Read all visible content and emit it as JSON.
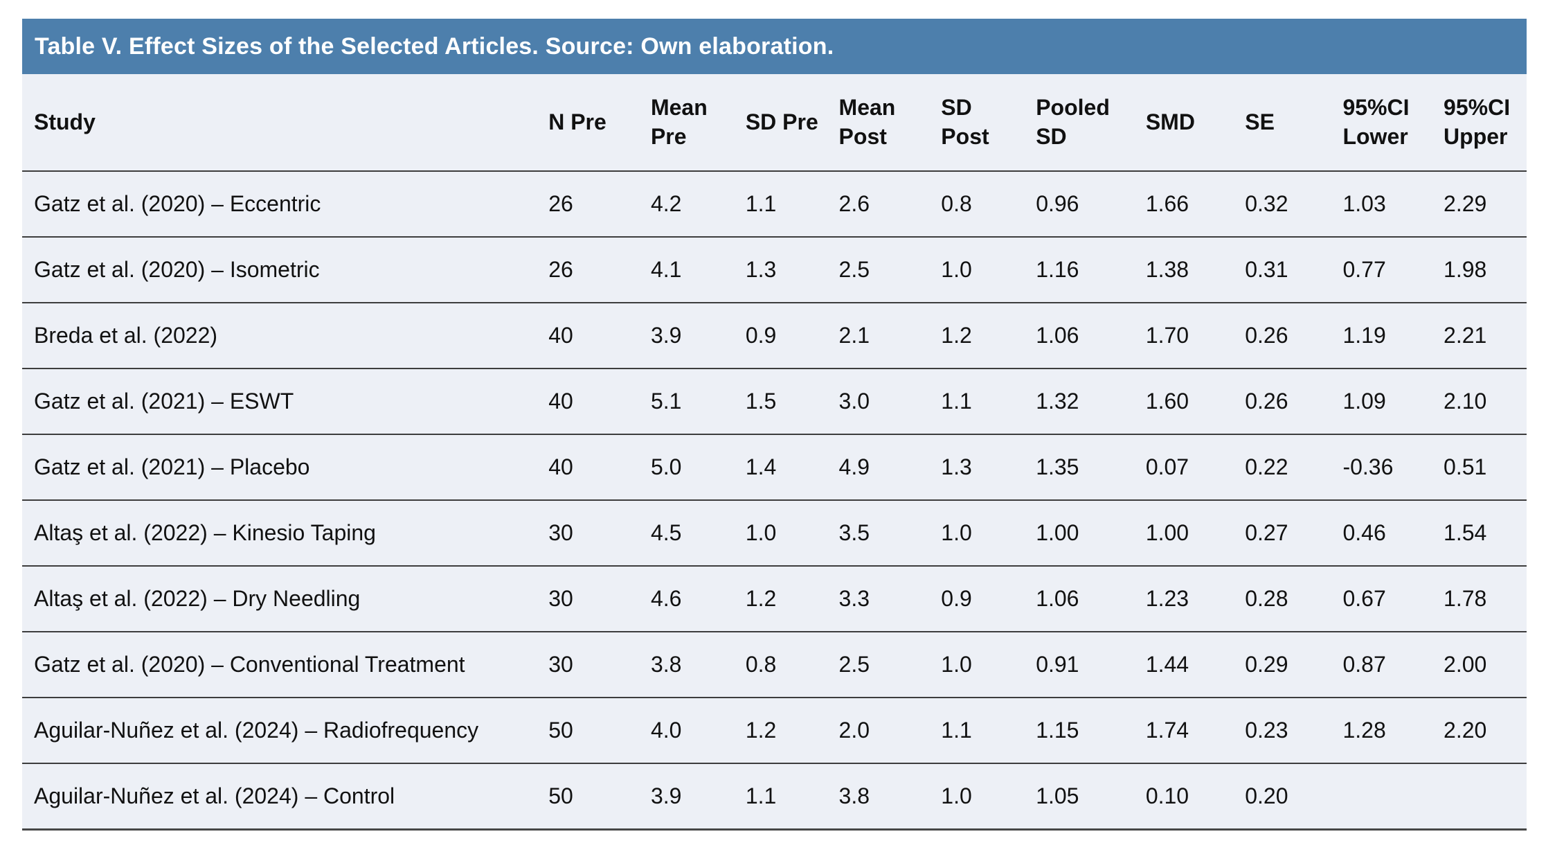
{
  "title": "Table V. Effect Sizes of the Selected Articles. Source: Own elaboration.",
  "colors": {
    "title_bar_bg": "#4d7fac",
    "title_text": "#ffffff",
    "table_bg": "#edf0f6",
    "divider": "#3d3d3d",
    "body_text": "#111111"
  },
  "table": {
    "columns": [
      "Study",
      "N Pre",
      "Mean\nPre",
      "SD Pre",
      "Mean\nPost",
      "SD\nPost",
      "Pooled\nSD",
      "SMD",
      "SE",
      "95%CI\nLower",
      "95%CI\nUpper"
    ],
    "rows": [
      [
        "Gatz et al. (2020) – Eccentric",
        "26",
        "4.2",
        "1.1",
        "2.6",
        "0.8",
        "0.96",
        "1.66",
        "0.32",
        "1.03",
        "2.29"
      ],
      [
        "Gatz et al. (2020) – Isometric",
        "26",
        "4.1",
        "1.3",
        "2.5",
        "1.0",
        "1.16",
        "1.38",
        "0.31",
        "0.77",
        "1.98"
      ],
      [
        "Breda et al. (2022)",
        "40",
        "3.9",
        "0.9",
        "2.1",
        "1.2",
        "1.06",
        "1.70",
        "0.26",
        "1.19",
        "2.21"
      ],
      [
        "Gatz et al. (2021) – ESWT",
        "40",
        "5.1",
        "1.5",
        "3.0",
        "1.1",
        "1.32",
        "1.60",
        "0.26",
        "1.09",
        "2.10"
      ],
      [
        "Gatz et al. (2021) – Placebo",
        "40",
        "5.0",
        "1.4",
        "4.9",
        "1.3",
        "1.35",
        "0.07",
        "0.22",
        "-0.36",
        "0.51"
      ],
      [
        "Altaş et al. (2022) – Kinesio Taping",
        "30",
        "4.5",
        "1.0",
        "3.5",
        "1.0",
        "1.00",
        "1.00",
        "0.27",
        "0.46",
        "1.54"
      ],
      [
        "Altaş et al. (2022) – Dry Needling",
        "30",
        "4.6",
        "1.2",
        "3.3",
        "0.9",
        "1.06",
        "1.23",
        "0.28",
        "0.67",
        "1.78"
      ],
      [
        "Gatz et al. (2020) – Conventional Treatment",
        "30",
        "3.8",
        "0.8",
        "2.5",
        "1.0",
        "0.91",
        "1.44",
        "0.29",
        "0.87",
        "2.00"
      ],
      [
        "Aguilar-Nuñez et al. (2024) – Radiofrequency",
        "50",
        "4.0",
        "1.2",
        "2.0",
        "1.1",
        "1.15",
        "1.74",
        "0.23",
        "1.28",
        "2.20"
      ],
      [
        "Aguilar-Nuñez et al. (2024) – Control",
        "50",
        "3.9",
        "1.1",
        "3.8",
        "1.0",
        "1.05",
        "0.10",
        "0.20",
        "",
        ""
      ]
    ]
  }
}
